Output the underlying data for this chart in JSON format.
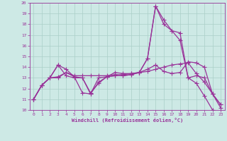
{
  "xlabel": "Windchill (Refroidissement éolien,°C)",
  "xlim": [
    -0.5,
    23.5
  ],
  "ylim": [
    10,
    20
  ],
  "xticks": [
    0,
    1,
    2,
    3,
    4,
    5,
    6,
    7,
    8,
    9,
    10,
    11,
    12,
    13,
    14,
    15,
    16,
    17,
    18,
    19,
    20,
    21,
    22,
    23
  ],
  "yticks": [
    10,
    11,
    12,
    13,
    14,
    15,
    16,
    17,
    18,
    19,
    20
  ],
  "background_color": "#cde9e5",
  "grid_color": "#aacfc8",
  "line_color": "#993399",
  "line_width": 0.9,
  "marker": "+",
  "marker_size": 4,
  "series": [
    [
      11.0,
      12.3,
      13.0,
      14.2,
      13.8,
      13.1,
      11.6,
      11.5,
      12.6,
      13.1,
      13.2,
      13.2,
      13.3,
      13.5,
      13.8,
      14.2,
      13.6,
      13.4,
      13.5,
      14.5,
      14.4,
      14.0,
      11.5,
      10.5
    ],
    [
      11.0,
      12.3,
      13.0,
      14.2,
      13.2,
      13.0,
      13.0,
      11.5,
      13.0,
      13.1,
      13.2,
      13.2,
      13.3,
      13.5,
      14.8,
      19.7,
      18.4,
      17.4,
      16.5,
      13.0,
      12.5,
      11.3,
      10.0,
      9.8
    ],
    [
      11.0,
      12.3,
      13.0,
      13.0,
      13.5,
      13.2,
      13.2,
      13.2,
      13.2,
      13.2,
      13.3,
      13.3,
      13.4,
      13.5,
      13.6,
      13.8,
      14.0,
      14.2,
      14.3,
      14.4,
      13.4,
      12.6,
      11.5,
      10.2
    ],
    [
      11.0,
      12.3,
      13.0,
      13.1,
      13.5,
      13.1,
      13.0,
      11.6,
      12.5,
      13.1,
      13.5,
      13.4,
      13.4,
      13.5,
      14.8,
      19.7,
      18.0,
      17.4,
      17.2,
      13.0,
      13.2,
      13.0,
      11.5,
      10.5
    ]
  ]
}
